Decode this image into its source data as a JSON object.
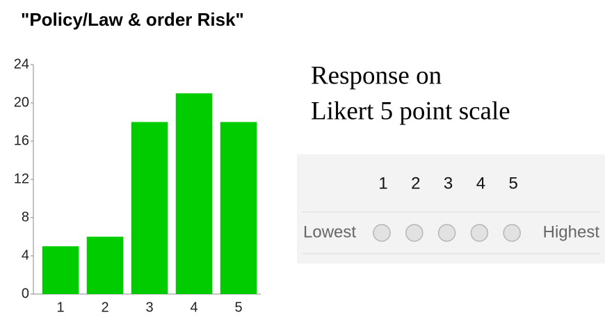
{
  "chart_data": {
    "type": "bar",
    "title": "\"Policy/Law & order Risk\"",
    "categories": [
      "1",
      "2",
      "3",
      "4",
      "5"
    ],
    "values": [
      5,
      6,
      18,
      21,
      18
    ],
    "color": "#00cc00",
    "ylim": [
      0,
      24
    ],
    "yticks": [
      0,
      4,
      8,
      12,
      16,
      20,
      24
    ],
    "grid": false
  },
  "caption": [
    "Response on",
    "Likert 5 point scale"
  ],
  "likert": {
    "options": [
      1,
      2,
      3,
      4,
      5
    ],
    "low": "Lowest",
    "high": "Highest"
  }
}
